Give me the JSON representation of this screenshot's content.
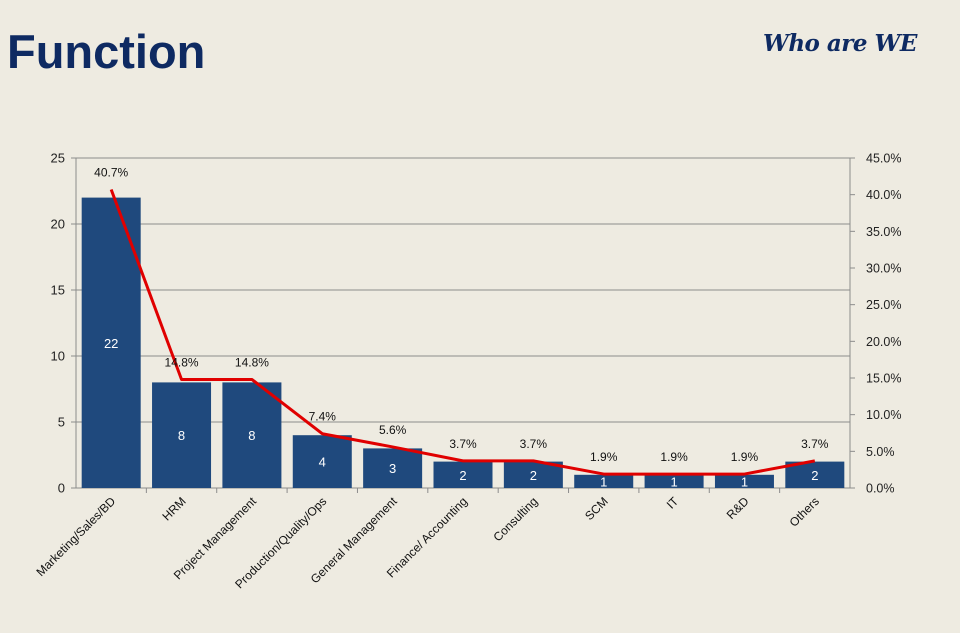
{
  "page": {
    "title": "Function",
    "brand": "Who are WE"
  },
  "chart_data": {
    "type": "bar",
    "categories": [
      "Marketing/Sales/BD",
      "HRM",
      "Project Management",
      "Production/Quality/Ops",
      "General Management",
      "Finance/ Accounting",
      "Consulting",
      "SCM",
      "IT",
      "R&D",
      "Others"
    ],
    "series": [
      {
        "type": "bar",
        "axis": "left",
        "values": [
          22,
          8,
          8,
          4,
          3,
          2,
          2,
          1,
          1,
          1,
          2
        ],
        "color": "#1f497d"
      },
      {
        "type": "line",
        "axis": "right",
        "values": [
          40.7,
          14.8,
          14.8,
          7.4,
          5.6,
          3.7,
          3.7,
          1.9,
          1.9,
          1.9,
          3.7
        ],
        "labels": [
          "40.7%",
          "14.8%",
          "14.8%",
          "7.4%",
          "5.6%",
          "3.7%",
          "3.7%",
          "1.9%",
          "1.9%",
          "1.9%",
          "3.7%"
        ],
        "color": "#e00000"
      }
    ],
    "y_left": {
      "min": 0,
      "max": 25,
      "ticks": [
        "0",
        "5",
        "10",
        "15",
        "20",
        "25"
      ]
    },
    "y_right": {
      "min": 0,
      "max": 45,
      "ticks": [
        "0.0%",
        "5.0%",
        "10.0%",
        "15.0%",
        "20.0%",
        "25.0%",
        "30.0%",
        "35.0%",
        "40.0%",
        "45.0%"
      ]
    },
    "grid": true,
    "legend": "none"
  }
}
